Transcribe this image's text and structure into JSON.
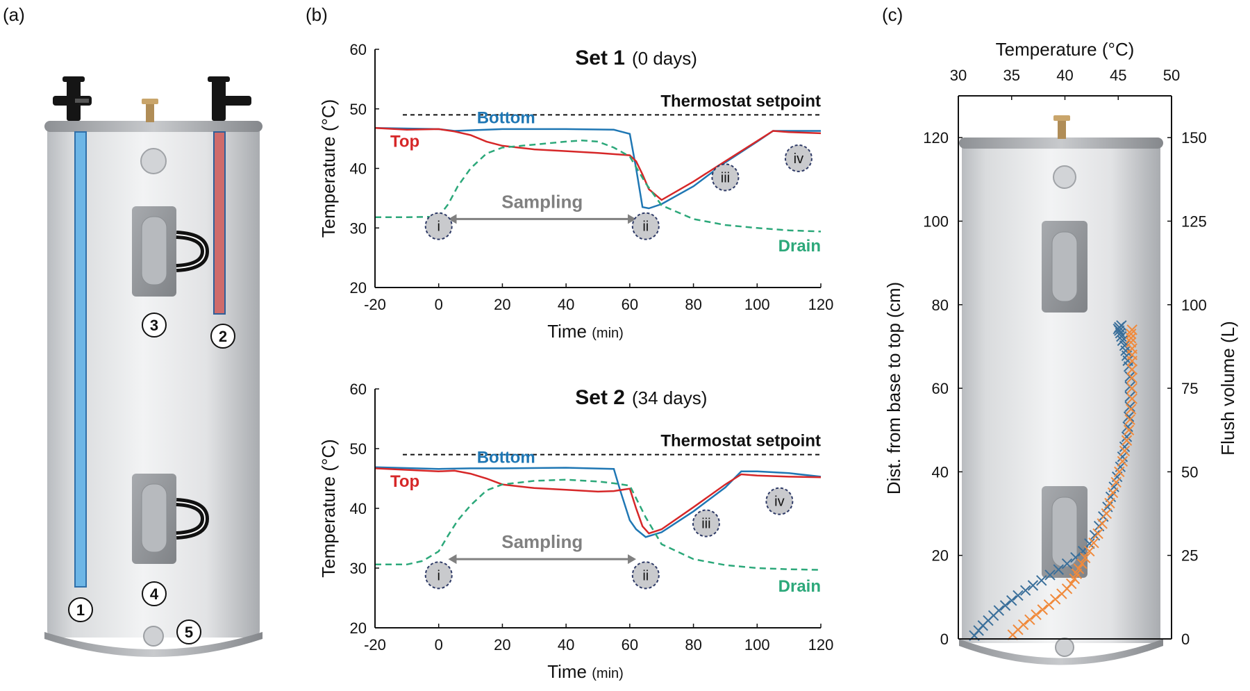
{
  "panel_labels": {
    "a": "(a)",
    "b": "(b)",
    "c": "(c)"
  },
  "heater_markers": [
    "1",
    "2",
    "3",
    "4",
    "5"
  ],
  "colors": {
    "bottom": "#1f77b4",
    "top": "#d62728",
    "drain": "#2ca87a",
    "setpoint": "#111111",
    "sampling": "#808080",
    "orange": "#f08a3c",
    "blue_cross": "#3a6f9a"
  },
  "chart_data": [
    {
      "type": "line",
      "title": "Set 1",
      "subtitle": "(0 days)",
      "xlabel": "Time",
      "xlabel_unit": "(min)",
      "ylabel": "Temperature (°C)",
      "xlim": [
        -20,
        120
      ],
      "ylim": [
        20,
        60
      ],
      "x_ticks": [
        "-20",
        "0",
        "20",
        "40",
        "60",
        "80",
        "100",
        "120"
      ],
      "y_ticks": [
        "20",
        "30",
        "40",
        "50",
        "60"
      ],
      "setpoint": {
        "label": "Thermostat setpoint",
        "value": 49
      },
      "sampling": {
        "label": "Sampling",
        "from": 3,
        "to": 62
      },
      "phases": [
        {
          "label": "i",
          "x": 0,
          "y": 30.3
        },
        {
          "label": "ii",
          "x": 65,
          "y": 30.3
        },
        {
          "label": "iii",
          "x": 90,
          "y": 38.5
        },
        {
          "label": "iv",
          "x": 113,
          "y": 41.7
        }
      ],
      "series": [
        {
          "name": "Bottom",
          "key": "bottom",
          "dash": false,
          "x": [
            -20,
            0,
            5,
            20,
            40,
            55,
            60,
            62,
            64,
            66,
            70,
            80,
            90,
            100,
            105,
            120
          ],
          "y": [
            46.8,
            46.6,
            46.3,
            46.6,
            46.6,
            46.5,
            45.8,
            40.0,
            33.5,
            33.3,
            34.0,
            37.0,
            41.0,
            44.5,
            46.3,
            46.3
          ]
        },
        {
          "name": "Top",
          "key": "top",
          "dash": false,
          "x": [
            -20,
            -10,
            0,
            5,
            10,
            15,
            20,
            30,
            40,
            50,
            60,
            62,
            64,
            66,
            70,
            80,
            90,
            100,
            105,
            110,
            120
          ],
          "y": [
            46.8,
            46.5,
            46.6,
            46.2,
            45.6,
            44.5,
            43.8,
            43.2,
            42.9,
            42.6,
            42.2,
            41.2,
            39.0,
            36.5,
            34.7,
            37.8,
            41.2,
            44.6,
            46.3,
            46.1,
            45.9
          ]
        },
        {
          "name": "Drain",
          "key": "drain",
          "dash": true,
          "x": [
            -20,
            -10,
            0,
            3,
            6,
            10,
            15,
            20,
            30,
            40,
            45,
            50,
            55,
            60,
            65,
            70,
            80,
            90,
            100,
            110,
            120
          ],
          "y": [
            31.8,
            31.8,
            31.9,
            34.0,
            37.0,
            40.0,
            42.5,
            43.5,
            44.0,
            44.5,
            44.7,
            44.5,
            43.5,
            42.0,
            37.5,
            33.8,
            31.5,
            30.5,
            30.0,
            29.6,
            29.4
          ]
        }
      ]
    },
    {
      "type": "line",
      "title": "Set 2",
      "subtitle": "(34 days)",
      "xlabel": "Time",
      "xlabel_unit": "(min)",
      "ylabel": "Temperature (°C)",
      "xlim": [
        -20,
        120
      ],
      "ylim": [
        20,
        60
      ],
      "x_ticks": [
        "-20",
        "0",
        "20",
        "40",
        "60",
        "80",
        "100",
        "120"
      ],
      "y_ticks": [
        "20",
        "30",
        "40",
        "50",
        "60"
      ],
      "setpoint": {
        "label": "Thermostat setpoint",
        "value": 49
      },
      "sampling": {
        "label": "Sampling",
        "from": 3,
        "to": 62
      },
      "phases": [
        {
          "label": "i",
          "x": 0,
          "y": 28.8
        },
        {
          "label": "ii",
          "x": 65,
          "y": 28.8
        },
        {
          "label": "iii",
          "x": 84,
          "y": 37.5
        },
        {
          "label": "iv",
          "x": 107,
          "y": 41.2
        }
      ],
      "series": [
        {
          "name": "Bottom",
          "key": "bottom",
          "dash": false,
          "x": [
            -20,
            0,
            10,
            20,
            40,
            55,
            57,
            60,
            62,
            65,
            70,
            80,
            90,
            95,
            100,
            110,
            120
          ],
          "y": [
            46.9,
            46.6,
            46.7,
            46.7,
            46.8,
            46.6,
            43.0,
            38.0,
            36.5,
            35.2,
            36.0,
            39.5,
            43.5,
            46.2,
            46.2,
            45.9,
            45.3
          ]
        },
        {
          "name": "Top",
          "key": "top",
          "dash": false,
          "x": [
            -20,
            0,
            5,
            10,
            15,
            20,
            30,
            40,
            50,
            55,
            60,
            62,
            64,
            66,
            70,
            80,
            90,
            95,
            100,
            110,
            120
          ],
          "y": [
            46.7,
            46.2,
            46.3,
            45.8,
            45.0,
            44.0,
            43.4,
            43.1,
            42.8,
            42.9,
            43.3,
            40.0,
            37.0,
            35.8,
            36.5,
            40.2,
            44.0,
            45.7,
            45.5,
            45.3,
            45.2
          ]
        },
        {
          "name": "Drain",
          "key": "drain",
          "dash": true,
          "x": [
            -20,
            -10,
            -5,
            0,
            3,
            6,
            10,
            15,
            20,
            30,
            40,
            50,
            55,
            60,
            65,
            70,
            80,
            90,
            100,
            110,
            120
          ],
          "y": [
            30.6,
            30.6,
            31.2,
            32.8,
            35.5,
            38.0,
            40.5,
            43.0,
            44.0,
            44.6,
            44.8,
            44.5,
            44.2,
            43.8,
            38.5,
            34.0,
            31.5,
            30.5,
            30.0,
            29.8,
            29.7
          ]
        }
      ]
    },
    {
      "type": "scatter",
      "xlabel": "Temperature (°C)",
      "ylabel": "Dist. from base to top (cm)",
      "y2label": "Flush volume (L)",
      "xlim": [
        30,
        50
      ],
      "ylim": [
        0,
        130
      ],
      "x_ticks": [
        "30",
        "35",
        "40",
        "45",
        "50"
      ],
      "y_ticks": [
        "0",
        "20",
        "40",
        "60",
        "80",
        "100",
        "120"
      ],
      "y2_ticks": [
        "0",
        "25",
        "50",
        "75",
        "100",
        "125",
        "150"
      ],
      "series": [
        {
          "key": "blue_cross",
          "x": [
            31.5,
            31.9,
            32.3,
            32.8,
            33.3,
            33.8,
            34.4,
            35.0,
            35.6,
            36.3,
            37.0,
            37.8,
            38.6,
            39.4,
            40.2,
            41.0,
            41.7,
            42.3,
            42.8,
            43.2,
            43.6,
            44.0,
            44.3,
            44.6,
            44.9,
            45.2,
            45.4,
            45.6,
            45.8,
            45.9,
            46.0,
            46.1,
            46.1,
            46.1,
            46.1,
            46.0,
            45.9,
            45.8,
            45.7,
            45.6,
            45.4,
            45.3,
            45.2,
            45.1,
            45.0,
            45.1,
            45.3
          ],
          "y": [
            0.8,
            2.0,
            3.2,
            4.4,
            5.6,
            6.8,
            8.0,
            9.2,
            10.4,
            11.6,
            12.8,
            14.0,
            15.3,
            16.6,
            18.0,
            19.5,
            21.0,
            22.8,
            24.8,
            27.0,
            29.3,
            31.6,
            34.0,
            36.4,
            38.8,
            41.2,
            43.6,
            46.0,
            48.4,
            50.8,
            53.2,
            55.6,
            58.0,
            60.4,
            62.8,
            65.2,
            66.6,
            67.8,
            69.0,
            70.2,
            71.4,
            72.4,
            73.2,
            73.8,
            74.2,
            74.6,
            75.0
          ]
        },
        {
          "key": "orange",
          "x": [
            35.1,
            35.6,
            36.1,
            36.7,
            37.3,
            37.9,
            38.5,
            39.1,
            39.7,
            40.2,
            40.6,
            40.9,
            41.1,
            41.3,
            41.6,
            41.9,
            42.3,
            42.7,
            43.1,
            43.5,
            43.9,
            44.2,
            44.5,
            44.8,
            45.1,
            45.4,
            45.6,
            45.8,
            46.0,
            46.1,
            46.2,
            46.3,
            46.3,
            46.3,
            46.3,
            46.3,
            46.3,
            46.3,
            46.2,
            46.2,
            46.2,
            46.3
          ],
          "y": [
            1.0,
            2.2,
            3.4,
            4.6,
            5.8,
            7.0,
            8.2,
            9.5,
            10.8,
            12.0,
            13.2,
            14.4,
            15.6,
            16.8,
            18.0,
            19.4,
            21.0,
            23.0,
            25.2,
            27.6,
            30.0,
            32.5,
            35.0,
            37.5,
            40.0,
            42.5,
            45.0,
            47.5,
            50.0,
            52.5,
            55.0,
            57.5,
            60.0,
            62.5,
            64.5,
            66.5,
            68.0,
            69.5,
            71.0,
            72.0,
            73.0,
            74.0
          ]
        }
      ]
    }
  ]
}
